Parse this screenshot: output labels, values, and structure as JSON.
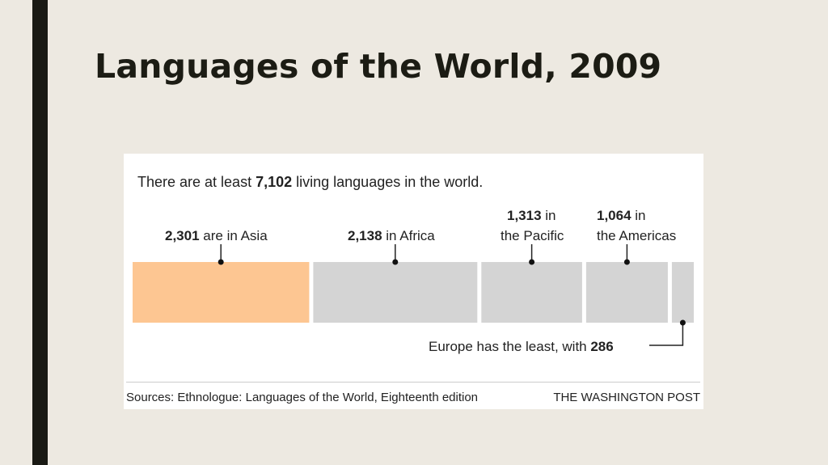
{
  "slide": {
    "title": "Languages of the World, 2009"
  },
  "graphic": {
    "lead": {
      "prefix": "There are at least ",
      "total": "7,102",
      "suffix": " living languages in the world."
    },
    "labels": {
      "asia": {
        "number": "2,301",
        "text": " are in Asia"
      },
      "africa": {
        "number": "2,138",
        "text": " in Africa"
      },
      "pacific": {
        "number": "1,313",
        "line1": " in",
        "line2": "the Pacific"
      },
      "americas": {
        "number": "1,064",
        "line1": " in",
        "line2": "the Americas"
      },
      "europe": {
        "text": "Europe has the least, with ",
        "number": "286"
      }
    },
    "sources": "Sources: Ethnologue: Languages of the World, Eighteenth edition",
    "credit": "THE WASHINGTON POST"
  },
  "chart_data": {
    "type": "bar",
    "title": "There are at least 7,102 living languages in the world.",
    "total": 7102,
    "categories": [
      "Asia",
      "Africa",
      "Pacific",
      "Americas",
      "Europe"
    ],
    "values": [
      2301,
      2138,
      1313,
      1064,
      286
    ],
    "colors": {
      "highlight": "#fdc692",
      "default": "#d4d4d4"
    },
    "highlighted_category": "Asia"
  }
}
